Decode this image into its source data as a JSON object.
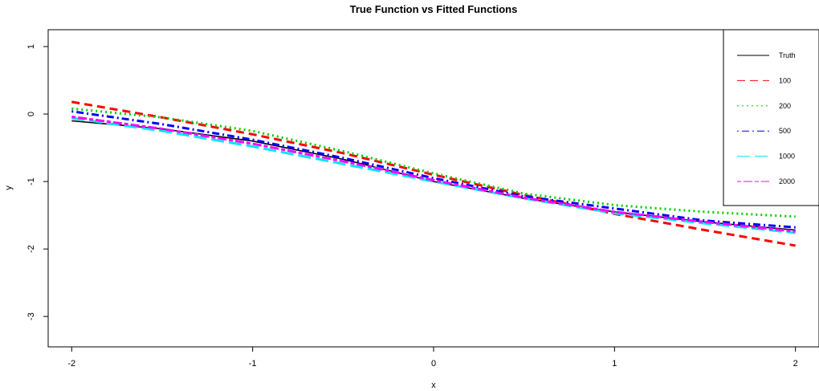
{
  "chart_data": {
    "type": "line",
    "title": "True Function vs Fitted Functions",
    "xlabel": "x",
    "ylabel": "y",
    "xlim": [
      -2.13,
      2.13
    ],
    "ylim": [
      -3.45,
      1.25
    ],
    "xticks": [
      -2,
      -1,
      0,
      1,
      2
    ],
    "xtick_labels": [
      "-2",
      "-1",
      "0",
      "1",
      "2"
    ],
    "yticks": [
      1,
      0,
      -1,
      -2,
      -3
    ],
    "ytick_labels": [
      "1",
      "0",
      "-1",
      "-2",
      "-3"
    ],
    "grid": false,
    "legend_position": "top-right",
    "x": [
      -2,
      -1.5,
      -1,
      -0.5,
      0,
      0.5,
      1,
      1.5,
      2
    ],
    "series": [
      {
        "name": "Truth",
        "color": "#000000",
        "dash": "solid",
        "width": 1.6,
        "values": [
          -0.1,
          -0.22,
          -0.4,
          -0.67,
          -1.0,
          -1.25,
          -1.45,
          -1.6,
          -1.72
        ]
      },
      {
        "name": "100",
        "color": "#ff0000",
        "dash": "dashed",
        "width": 3,
        "values": [
          0.18,
          -0.05,
          -0.3,
          -0.58,
          -0.9,
          -1.2,
          -1.48,
          -1.72,
          -1.95
        ]
      },
      {
        "name": "200",
        "color": "#00cd00",
        "dash": "dotted",
        "width": 3,
        "values": [
          0.08,
          -0.05,
          -0.25,
          -0.55,
          -0.88,
          -1.18,
          -1.35,
          -1.45,
          -1.52
        ]
      },
      {
        "name": "500",
        "color": "#0000ff",
        "dash": "dotdash",
        "width": 3,
        "values": [
          0.04,
          -0.15,
          -0.38,
          -0.65,
          -0.95,
          -1.22,
          -1.4,
          -1.58,
          -1.68
        ]
      },
      {
        "name": "1000",
        "color": "#00e5ff",
        "dash": "longdash",
        "width": 3,
        "values": [
          -0.06,
          -0.25,
          -0.48,
          -0.74,
          -1.0,
          -1.25,
          -1.47,
          -1.62,
          -1.76
        ]
      },
      {
        "name": "2000",
        "color": "#ff00ff",
        "dash": "twodash",
        "width": 3,
        "values": [
          -0.04,
          -0.22,
          -0.44,
          -0.7,
          -0.98,
          -1.24,
          -1.45,
          -1.6,
          -1.74
        ]
      }
    ]
  }
}
